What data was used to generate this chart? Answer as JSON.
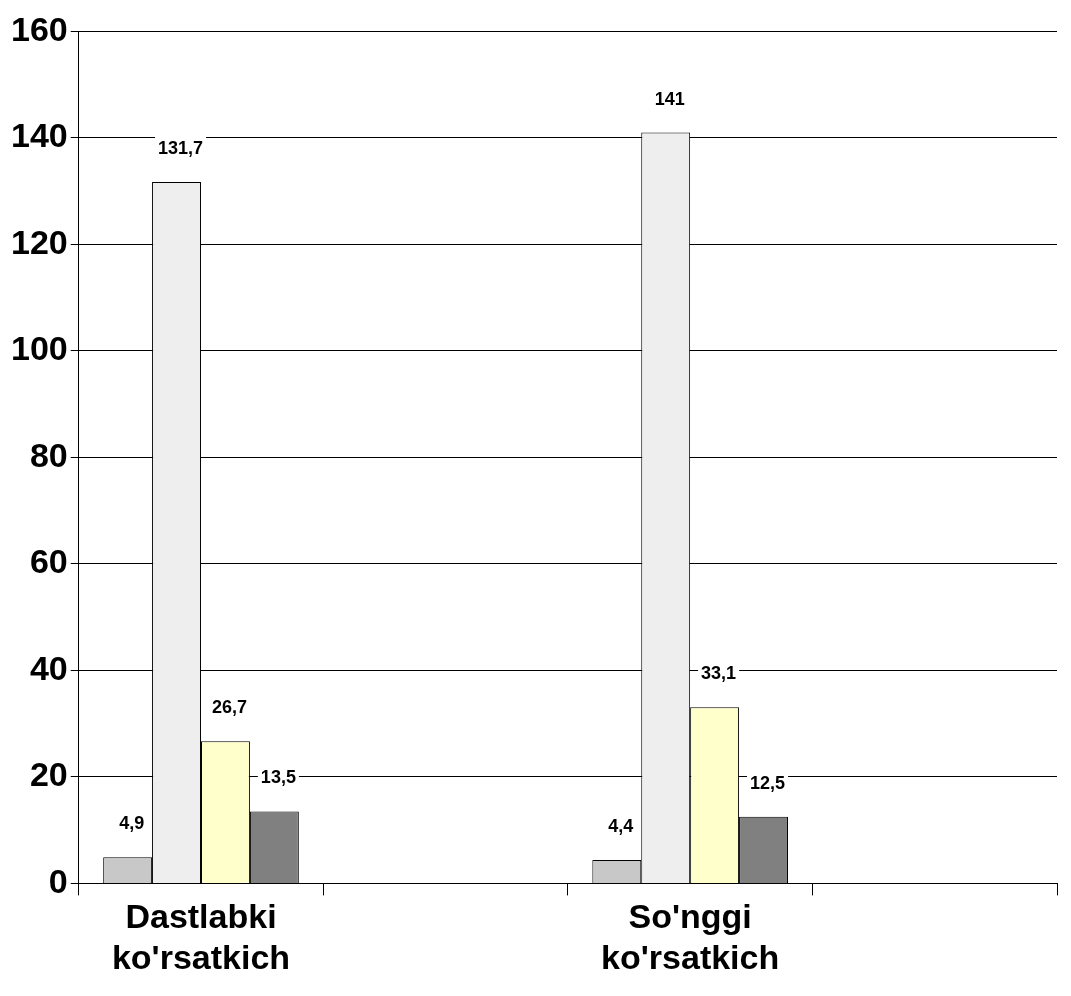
{
  "chart_data": {
    "type": "bar",
    "categories": [
      "Dastlabki ko'rsatkich",
      null,
      "So'nggi ko'rsatkich",
      null
    ],
    "series": [
      {
        "color": "#c8c8c8",
        "values": [
          4.9,
          null,
          4.4,
          null
        ],
        "value_labels": [
          "4,9",
          null,
          "4,4",
          null
        ]
      },
      {
        "color": "#eeeeee",
        "values": [
          131.7,
          null,
          141,
          null
        ],
        "value_labels": [
          "131,7",
          null,
          "141",
          null
        ]
      },
      {
        "color": "#ffffcc",
        "values": [
          26.7,
          null,
          33.1,
          null
        ],
        "value_labels": [
          "26,7",
          null,
          "33,1",
          null
        ]
      },
      {
        "color": "#808080",
        "values": [
          13.5,
          null,
          12.5,
          null
        ],
        "value_labels": [
          "13,5",
          null,
          "12,5",
          null
        ]
      }
    ],
    "ylim": [
      0,
      160
    ],
    "yticks": [
      0,
      20,
      40,
      60,
      80,
      100,
      120,
      140,
      160
    ],
    "grid": "y",
    "legend": false
  }
}
